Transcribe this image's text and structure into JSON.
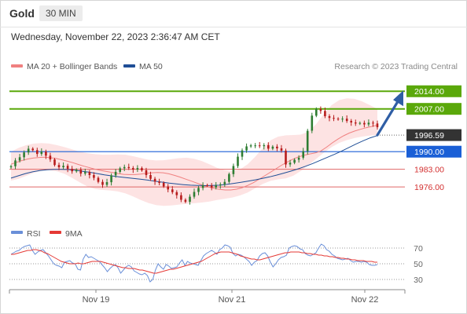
{
  "header": {
    "symbol": "Gold",
    "timeframe": "30 MIN",
    "datetime": "Wednesday, November 22, 2023 2:36:47 AM CET"
  },
  "legend": {
    "ma20_label": "MA 20 + Bollinger Bands",
    "ma50_label": "MA 50",
    "copyright": "Research © 2023 Trading Central",
    "rsi_label": "RSI",
    "ma9_label": "9MA"
  },
  "colors": {
    "candle_up": "#2e7d32",
    "candle_down": "#b71c1c",
    "bollinger_fill": "#fde3e3",
    "ma20": "#f08080",
    "ma50": "#1f4e96",
    "resistance": "#5aa80a",
    "support_blue": "#1a5fd6",
    "support_red": "#e06666",
    "price_box": "#333333",
    "arrow": "#2f5ea5",
    "rsi": "#6a8fd8",
    "rsi_ma": "#e53935"
  },
  "chart_data": [
    {
      "type": "candlestick",
      "title": "Gold",
      "x_ticks": [
        "Nov 19",
        "Nov 21",
        "Nov 22"
      ],
      "ylim": [
        1962,
        2020
      ],
      "current_price": "1996.59",
      "levels": [
        {
          "value": 2014.0,
          "label": "2014.00",
          "style": "resistance"
        },
        {
          "value": 2007.0,
          "label": "2007.00",
          "style": "resistance"
        },
        {
          "value": 1990.0,
          "label": "1990.00",
          "style": "support"
        },
        {
          "value": 1983.0,
          "label": "1983.00",
          "style": "minor"
        },
        {
          "value": 1976.0,
          "label": "1976.00",
          "style": "minor"
        }
      ],
      "close": [
        1984.2,
        1986.5,
        1987.8,
        1989.7,
        1991.2,
        1990.6,
        1989.1,
        1990.0,
        1988.4,
        1986.9,
        1984.7,
        1983.8,
        1984.4,
        1983.2,
        1982.2,
        1982.8,
        1981.3,
        1981.9,
        1980.7,
        1979.6,
        1978.0,
        1976.8,
        1977.9,
        1980.6,
        1982.0,
        1983.4,
        1983.9,
        1983.5,
        1982.9,
        1983.5,
        1982.6,
        1980.7,
        1979.2,
        1978.1,
        1977.6,
        1976.2,
        1975.0,
        1973.9,
        1972.7,
        1970.9,
        1970.1,
        1972.1,
        1974.0,
        1975.6,
        1976.7,
        1976.6,
        1975.8,
        1976.6,
        1977.0,
        1978.0,
        1981.1,
        1984.3,
        1988.0,
        1990.5,
        1992.1,
        1992.5,
        1992.5,
        1992.2,
        1992.6,
        1991.2,
        1992.0,
        1991.3,
        1990.4,
        1984.9,
        1985.6,
        1986.8,
        1987.6,
        1990.2,
        1998.3,
        2004.3,
        2007.0,
        2006.2,
        2004.1,
        2003.4,
        2003.1,
        2002.9,
        2003.1,
        2002.2,
        2001.6,
        2001.2,
        2001.4,
        2000.8,
        2001.5,
        2001.2,
        1999.7
      ],
      "ma20": [
        1985.0,
        1985.8,
        1986.5,
        1987.1,
        1987.5,
        1987.7,
        1987.8,
        1987.6,
        1987.3,
        1986.8,
        1986.2,
        1985.6,
        1984.9,
        1984.2,
        1983.6,
        1983.0,
        1982.5,
        1982.1,
        1981.7,
        1981.3,
        1981.0,
        1980.9,
        1980.9,
        1981.1,
        1981.4,
        1981.6,
        1981.7,
        1981.6,
        1981.2,
        1980.6,
        1979.9,
        1979.1,
        1978.3,
        1977.5,
        1976.7,
        1976.0,
        1975.4,
        1975.0,
        1974.8,
        1974.8,
        1975.1,
        1975.7,
        1976.6,
        1977.7,
        1979.0,
        1980.4,
        1981.8,
        1983.2,
        1984.6,
        1985.9,
        1987.0,
        1987.9,
        1988.6,
        1989.1,
        1989.5,
        1990.3,
        1991.8,
        1993.5,
        1995.0,
        1996.3,
        1997.4,
        1998.2,
        1998.9,
        1999.5,
        2000.0,
        2000.5
      ],
      "ma50": [
        1979.5,
        1980.4,
        1981.3,
        1982.0,
        1982.5,
        1982.8,
        1983.0,
        1983.0,
        1982.9,
        1982.6,
        1982.2,
        1981.8,
        1981.3,
        1980.8,
        1980.4,
        1980.0,
        1979.7,
        1979.4,
        1979.1,
        1978.7,
        1978.3,
        1977.9,
        1977.5,
        1977.2,
        1976.9,
        1976.7,
        1976.6,
        1976.5,
        1976.6,
        1976.7,
        1977.0,
        1977.4,
        1977.8,
        1978.3,
        1978.8,
        1979.4,
        1980.0,
        1980.7,
        1981.5,
        1982.3,
        1983.2,
        1984.2,
        1985.3,
        1986.5,
        1987.7,
        1988.9,
        1990.2,
        1991.6,
        1993.0,
        1994.3,
        1995.5,
        1996.4
      ],
      "bollinger_upper": [
        1990.0,
        1991.5,
        1992.6,
        1993.2,
        1993.4,
        1993.2,
        1992.6,
        1991.8,
        1990.9,
        1990.0,
        1989.4,
        1989.0,
        1988.8,
        1988.8,
        1988.9,
        1988.8,
        1988.2,
        1987.5,
        1986.8,
        1986.5,
        1986.6,
        1987.0,
        1987.4,
        1987.6,
        1987.2,
        1986.3,
        1985.0,
        1983.6,
        1982.6,
        1982.3,
        1983.0,
        1985.0,
        1988.0,
        1991.5,
        1994.5,
        1996.0,
        1996.5,
        1996.6,
        1996.8,
        1998.0,
        2001.0,
        2005.0,
        2008.5,
        2010.5,
        2011.2,
        2011.0,
        2010.0,
        2008.5,
        2007.0
      ],
      "bollinger_lower": [
        1978.5,
        1979.2,
        1980.4,
        1981.6,
        1982.4,
        1982.6,
        1982.2,
        1981.2,
        1979.6,
        1977.8,
        1976.2,
        1975.2,
        1974.8,
        1974.6,
        1974.2,
        1973.4,
        1972.2,
        1970.8,
        1969.6,
        1968.8,
        1968.5,
        1968.6,
        1969.0,
        1969.3,
        1969.5,
        1969.8,
        1970.2,
        1970.8,
        1971.3,
        1971.8,
        1972.6,
        1973.8,
        1975.5,
        1977.2,
        1978.4,
        1979.0,
        1979.4,
        1980.5,
        1982.4,
        1984.8,
        1987.2,
        1989.6,
        1991.8,
        1993.5,
        1994.6,
        1995.4,
        1996.0,
        1996.4,
        1996.6
      ],
      "forecast_arrow": {
        "from_price": 1996.59,
        "to_price": 2014.0
      }
    },
    {
      "type": "line",
      "title": "RSI",
      "ylim": [
        20,
        80
      ],
      "yticks": [
        70,
        50,
        30
      ],
      "series": [
        {
          "name": "RSI",
          "values": [
            62,
            64,
            66,
            67,
            70,
            72,
            73,
            74,
            67,
            62,
            65,
            67,
            68,
            64,
            60,
            55,
            50,
            48,
            47,
            45,
            52,
            53,
            54,
            51,
            50,
            43,
            42,
            56,
            62,
            58,
            59,
            57,
            55,
            53,
            49,
            45,
            40,
            44,
            47,
            49,
            45,
            38,
            42,
            46,
            48,
            46,
            41,
            39,
            37,
            36,
            38,
            35,
            27,
            30,
            42,
            50,
            46,
            43,
            49,
            47,
            44,
            45,
            46,
            51,
            55,
            48,
            53,
            51,
            50,
            49,
            48,
            54,
            60,
            63,
            65,
            67,
            65,
            62,
            68,
            70,
            74,
            73,
            71,
            63,
            60,
            62,
            61,
            59,
            56,
            53,
            48,
            52,
            54,
            60,
            63,
            64,
            60,
            52,
            46,
            50,
            55,
            58,
            59,
            61,
            70,
            72,
            73,
            72,
            69,
            68,
            63,
            61,
            60,
            62,
            64,
            70,
            75,
            73,
            68,
            66,
            62,
            60,
            57,
            56,
            55,
            56,
            57,
            54,
            52,
            53,
            53,
            52,
            53,
            52,
            49,
            48,
            48,
            49
          ]
        },
        {
          "name": "9MA",
          "values": [
            62,
            62,
            63,
            64,
            65,
            66,
            67,
            67,
            68,
            68,
            67,
            66,
            64,
            63,
            61,
            59,
            57,
            55,
            53,
            52,
            51,
            50,
            50,
            50,
            51,
            50,
            50,
            51,
            52,
            53,
            53,
            53,
            53,
            52,
            51,
            50,
            49,
            48,
            47,
            46,
            45,
            45,
            44,
            44,
            44,
            43,
            42,
            42,
            41,
            40,
            39,
            38,
            38,
            39,
            40,
            41,
            42,
            43,
            43,
            44,
            45,
            46,
            47,
            48,
            49,
            50,
            51,
            52,
            53,
            55,
            57,
            59,
            61,
            63,
            64,
            65,
            65,
            65,
            65,
            64,
            63,
            62,
            60,
            59,
            58,
            57,
            56,
            56,
            55,
            55,
            56,
            57,
            58,
            59,
            60,
            61,
            62,
            63,
            64,
            64,
            65,
            65,
            65,
            65,
            64,
            64,
            63,
            63,
            62,
            62,
            61,
            61,
            60,
            60,
            59,
            59,
            58,
            58,
            57,
            57,
            56,
            56,
            55,
            55,
            54,
            54,
            54,
            53,
            53,
            53,
            52,
            52
          ]
        }
      ]
    }
  ]
}
